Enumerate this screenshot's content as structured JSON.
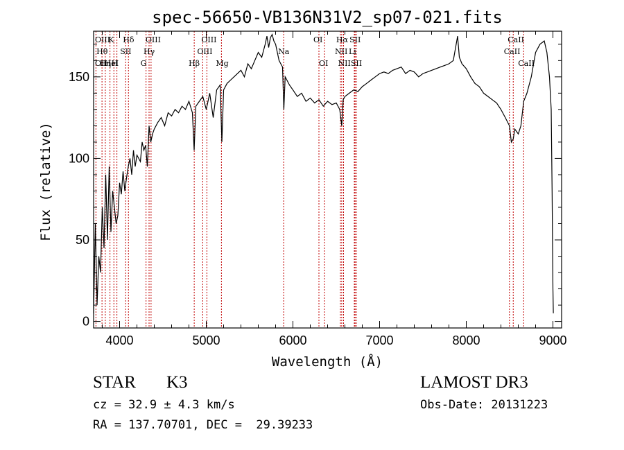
{
  "chart_data": {
    "type": "line",
    "title": "spec-56650-VB136N31V2_sp07-021.fits",
    "xlabel": "Wavelength (Å)",
    "ylabel": "Flux (relative)",
    "xlim": [
      3700,
      9100
    ],
    "ylim": [
      -4,
      178
    ],
    "xticks": [
      4000,
      5000,
      6000,
      7000,
      8000,
      9000
    ],
    "yticks": [
      0,
      50,
      100,
      150
    ],
    "series": [
      {
        "name": "spectrum",
        "x": [
          3700,
          3720,
          3740,
          3760,
          3780,
          3800,
          3820,
          3840,
          3860,
          3880,
          3900,
          3920,
          3940,
          3960,
          3980,
          4000,
          4020,
          4040,
          4060,
          4080,
          4100,
          4120,
          4140,
          4160,
          4180,
          4200,
          4220,
          4240,
          4260,
          4280,
          4300,
          4320,
          4340,
          4360,
          4380,
          4400,
          4440,
          4480,
          4520,
          4560,
          4600,
          4640,
          4680,
          4720,
          4760,
          4800,
          4840,
          4860,
          4880,
          4920,
          4960,
          5000,
          5040,
          5080,
          5120,
          5160,
          5180,
          5200,
          5240,
          5280,
          5320,
          5360,
          5400,
          5440,
          5480,
          5520,
          5560,
          5600,
          5640,
          5680,
          5700,
          5720,
          5740,
          5760,
          5780,
          5800,
          5820,
          5840,
          5860,
          5880,
          5895,
          5910,
          5930,
          5960,
          6000,
          6050,
          6100,
          6150,
          6200,
          6250,
          6300,
          6350,
          6400,
          6450,
          6500,
          6540,
          6563,
          6580,
          6600,
          6650,
          6700,
          6750,
          6800,
          6850,
          6900,
          6950,
          7000,
          7050,
          7100,
          7150,
          7200,
          7250,
          7300,
          7350,
          7400,
          7450,
          7500,
          7550,
          7600,
          7650,
          7700,
          7750,
          7800,
          7850,
          7900,
          7920,
          7950,
          8000,
          8050,
          8100,
          8150,
          8200,
          8250,
          8300,
          8350,
          8400,
          8450,
          8498,
          8520,
          8542,
          8560,
          8600,
          8630,
          8662,
          8700,
          8750,
          8800,
          8850,
          8900,
          8930,
          8960,
          8980,
          8990,
          9000,
          9005
        ],
        "values": [
          5,
          60,
          10,
          40,
          30,
          70,
          45,
          90,
          50,
          95,
          55,
          80,
          70,
          60,
          65,
          85,
          78,
          92,
          80,
          88,
          95,
          100,
          90,
          105,
          95,
          102,
          100,
          98,
          110,
          105,
          108,
          95,
          120,
          110,
          115,
          118,
          122,
          125,
          120,
          128,
          126,
          130,
          128,
          132,
          130,
          135,
          128,
          105,
          132,
          135,
          138,
          130,
          140,
          125,
          142,
          145,
          110,
          142,
          146,
          148,
          150,
          152,
          154,
          150,
          158,
          155,
          160,
          165,
          162,
          170,
          175,
          168,
          174,
          176,
          172,
          170,
          165,
          160,
          158,
          156,
          130,
          150,
          148,
          145,
          142,
          138,
          140,
          135,
          137,
          134,
          136,
          132,
          135,
          133,
          134,
          130,
          120,
          136,
          138,
          140,
          142,
          141,
          144,
          146,
          148,
          150,
          152,
          153,
          152,
          154,
          155,
          156,
          152,
          154,
          153,
          150,
          152,
          153,
          154,
          155,
          156,
          157,
          158,
          160,
          175,
          162,
          158,
          155,
          150,
          146,
          144,
          140,
          138,
          136,
          134,
          130,
          125,
          120,
          110,
          112,
          118,
          115,
          120,
          135,
          140,
          150,
          165,
          170,
          172,
          165,
          150,
          130,
          80,
          20,
          5
        ]
      }
    ],
    "lines": [
      {
        "name": "Hθ",
        "x": 3797
      },
      {
        "name": "OII",
        "x": 3727
      },
      {
        "name": "OIII",
        "x": 3727
      },
      {
        "name": "HeI",
        "x": 3889
      },
      {
        "name": "Hη",
        "x": 3835
      },
      {
        "name": "K",
        "x": 3934
      },
      {
        "name": "SII",
        "x": 4070
      },
      {
        "name": "H",
        "x": 3969
      },
      {
        "name": "Hδ",
        "x": 4102
      },
      {
        "name": "OIII",
        "x": 4363
      },
      {
        "name": "Hγ",
        "x": 4340
      },
      {
        "name": "G",
        "x": 4305
      },
      {
        "name": "OIII",
        "x": 5007
      },
      {
        "name": "OIII",
        "x": 4959
      },
      {
        "name": "Hβ",
        "x": 4861
      },
      {
        "name": "Mg",
        "x": 5175
      },
      {
        "name": "Na",
        "x": 5893
      },
      {
        "name": "OI",
        "x": 6300
      },
      {
        "name": "OI",
        "x": 6364
      },
      {
        "name": "Hα",
        "x": 6563
      },
      {
        "name": "SII",
        "x": 6717
      },
      {
        "name": "NII",
        "x": 6548
      },
      {
        "name": "Li",
        "x": 6708
      },
      {
        "name": "NII",
        "x": 6584
      },
      {
        "name": "SII",
        "x": 6731
      },
      {
        "name": "CaII",
        "x": 8542
      },
      {
        "name": "CaII",
        "x": 8498
      },
      {
        "name": "CaII",
        "x": 8662
      }
    ]
  },
  "info": {
    "object_class": "STAR",
    "subclass": "K3",
    "survey": "LAMOST DR3",
    "cz": "cz = 32.9 ± 4.3 km/s",
    "obs_date": "Obs-Date: 20131223",
    "coords": "RA = 137.70701, DEC =  29.39233"
  }
}
